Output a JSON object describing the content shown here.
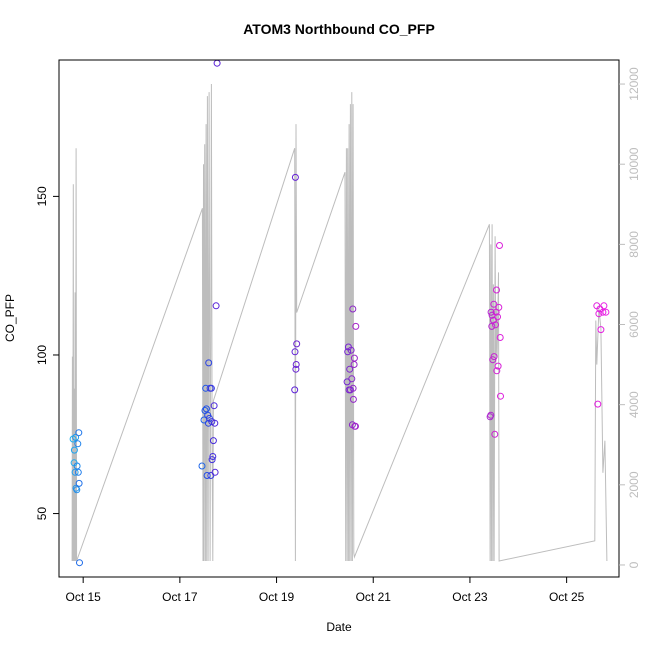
{
  "chart_data": {
    "type": "scatter",
    "title": "ATOM3 Northbound CO_PFP",
    "xlabel": "Date",
    "ylabel": "CO_PFP",
    "x_unit": "date",
    "x_range": [
      "2016-10-14T12:00",
      "2016-10-26T02:00"
    ],
    "y_range": [
      30,
      193
    ],
    "y2_range": [
      -300,
      12600
    ],
    "x_ticks": [
      {
        "label": "Oct 15",
        "x": "2016-10-15T00:00"
      },
      {
        "label": "Oct 17",
        "x": "2016-10-17T00:00"
      },
      {
        "label": "Oct 19",
        "x": "2016-10-19T00:00"
      },
      {
        "label": "Oct 21",
        "x": "2016-10-21T00:00"
      },
      {
        "label": "Oct 23",
        "x": "2016-10-23T00:00"
      },
      {
        "label": "Oct 25",
        "x": "2016-10-25T00:00"
      }
    ],
    "y_ticks": [
      "50",
      "100",
      "150"
    ],
    "y2_ticks": [
      "0",
      "2000",
      "4000",
      "6000",
      "8000",
      "10000",
      "12000"
    ],
    "grid": false,
    "point_color_gradient": [
      "#1fb0f0",
      "#1f4fe6",
      "#5a20d8",
      "#9028c8",
      "#d020d4",
      "#ea20e4"
    ],
    "line_color": "#bdbdbd",
    "series": [
      {
        "kind": "points",
        "points": [
          {
            "x": "2016-10-14T19:00",
            "y": 73.5
          },
          {
            "x": "2016-10-14T19:30",
            "y": 66
          },
          {
            "x": "2016-10-14T19:40",
            "y": 70
          },
          {
            "x": "2016-10-14T20:00",
            "y": 63
          },
          {
            "x": "2016-10-14T20:15",
            "y": 74
          },
          {
            "x": "2016-10-14T20:30",
            "y": 58
          },
          {
            "x": "2016-10-14T20:50",
            "y": 57.5
          },
          {
            "x": "2016-10-14T21:00",
            "y": 65
          },
          {
            "x": "2016-10-14T21:20",
            "y": 72
          },
          {
            "x": "2016-10-14T21:35",
            "y": 63
          },
          {
            "x": "2016-10-14T21:50",
            "y": 75.5
          },
          {
            "x": "2016-10-14T22:00",
            "y": 59.5
          },
          {
            "x": "2016-10-14T22:10",
            "y": 34.5
          },
          {
            "x": "2016-10-17T11:00",
            "y": 65
          },
          {
            "x": "2016-10-17T12:00",
            "y": 79.5
          },
          {
            "x": "2016-10-17T12:30",
            "y": 82.5
          },
          {
            "x": "2016-10-17T12:50",
            "y": 89.5
          },
          {
            "x": "2016-10-17T13:10",
            "y": 83
          },
          {
            "x": "2016-10-17T13:30",
            "y": 62
          },
          {
            "x": "2016-10-17T13:50",
            "y": 81
          },
          {
            "x": "2016-10-17T14:10",
            "y": 78.5
          },
          {
            "x": "2016-10-17T14:20",
            "y": 97.5
          },
          {
            "x": "2016-10-17T14:40",
            "y": 80
          },
          {
            "x": "2016-10-17T15:00",
            "y": 89.5
          },
          {
            "x": "2016-10-17T15:20",
            "y": 62
          },
          {
            "x": "2016-10-17T15:40",
            "y": 89.5
          },
          {
            "x": "2016-10-17T15:50",
            "y": 79
          },
          {
            "x": "2016-10-17T16:00",
            "y": 67
          },
          {
            "x": "2016-10-17T16:20",
            "y": 68
          },
          {
            "x": "2016-10-17T16:40",
            "y": 73
          },
          {
            "x": "2016-10-17T17:00",
            "y": 84
          },
          {
            "x": "2016-10-17T17:20",
            "y": 78.5
          },
          {
            "x": "2016-10-17T17:30",
            "y": 63
          },
          {
            "x": "2016-10-17T18:00",
            "y": 115.5
          },
          {
            "x": "2016-10-17T18:30",
            "y": 192
          },
          {
            "x": "2016-10-19T09:00",
            "y": 89
          },
          {
            "x": "2016-10-19T09:10",
            "y": 101
          },
          {
            "x": "2016-10-19T09:20",
            "y": 156
          },
          {
            "x": "2016-10-19T09:35",
            "y": 95.5
          },
          {
            "x": "2016-10-19T09:45",
            "y": 97
          },
          {
            "x": "2016-10-19T10:00",
            "y": 103.5
          },
          {
            "x": "2016-10-20T11:00",
            "y": 91.5
          },
          {
            "x": "2016-10-20T11:20",
            "y": 101
          },
          {
            "x": "2016-10-20T11:40",
            "y": 102.5
          },
          {
            "x": "2016-10-20T12:00",
            "y": 89
          },
          {
            "x": "2016-10-20T12:20",
            "y": 95.5
          },
          {
            "x": "2016-10-20T12:40",
            "y": 89
          },
          {
            "x": "2016-10-20T13:00",
            "y": 101.5
          },
          {
            "x": "2016-10-20T13:20",
            "y": 92.5
          },
          {
            "x": "2016-10-20T13:40",
            "y": 78
          },
          {
            "x": "2016-10-20T13:50",
            "y": 114.5
          },
          {
            "x": "2016-10-20T14:00",
            "y": 89.5
          },
          {
            "x": "2016-10-20T14:10",
            "y": 86
          },
          {
            "x": "2016-10-20T14:30",
            "y": 97
          },
          {
            "x": "2016-10-20T14:40",
            "y": 99
          },
          {
            "x": "2016-10-20T14:50",
            "y": 77.5
          },
          {
            "x": "2016-10-20T15:10",
            "y": 77.5
          },
          {
            "x": "2016-10-20T15:20",
            "y": 109
          },
          {
            "x": "2016-10-23T10:00",
            "y": 80.5
          },
          {
            "x": "2016-10-23T10:20",
            "y": 81
          },
          {
            "x": "2016-10-23T10:30",
            "y": 113.5
          },
          {
            "x": "2016-10-23T10:50",
            "y": 109
          },
          {
            "x": "2016-10-23T11:00",
            "y": 112.5
          },
          {
            "x": "2016-10-23T11:20",
            "y": 98.5
          },
          {
            "x": "2016-10-23T11:40",
            "y": 111
          },
          {
            "x": "2016-10-23T11:50",
            "y": 116
          },
          {
            "x": "2016-10-23T12:00",
            "y": 99.5
          },
          {
            "x": "2016-10-23T12:20",
            "y": 75
          },
          {
            "x": "2016-10-23T12:40",
            "y": 109.5
          },
          {
            "x": "2016-10-23T13:00",
            "y": 113.5
          },
          {
            "x": "2016-10-23T13:10",
            "y": 120.5
          },
          {
            "x": "2016-10-23T13:20",
            "y": 95
          },
          {
            "x": "2016-10-23T13:40",
            "y": 112
          },
          {
            "x": "2016-10-23T14:00",
            "y": 96.5
          },
          {
            "x": "2016-10-23T14:20",
            "y": 115
          },
          {
            "x": "2016-10-23T14:40",
            "y": 134.5
          },
          {
            "x": "2016-10-23T15:00",
            "y": 105.5
          },
          {
            "x": "2016-10-23T15:10",
            "y": 87
          },
          {
            "x": "2016-10-25T15:00",
            "y": 115.5
          },
          {
            "x": "2016-10-25T15:30",
            "y": 84.5
          },
          {
            "x": "2016-10-25T16:00",
            "y": 113
          },
          {
            "x": "2016-10-25T16:30",
            "y": 114.5
          },
          {
            "x": "2016-10-25T17:00",
            "y": 108
          },
          {
            "x": "2016-10-25T18:00",
            "y": 113.5
          },
          {
            "x": "2016-10-25T18:30",
            "y": 115.5
          },
          {
            "x": "2016-10-25T19:30",
            "y": 113.5
          }
        ]
      },
      {
        "kind": "line",
        "axis": "right",
        "points": [
          {
            "x": "2016-10-14T18:30",
            "y": 100
          },
          {
            "x": "2016-10-14T18:40",
            "y": 5200
          },
          {
            "x": "2016-10-14T18:50",
            "y": 100
          },
          {
            "x": "2016-10-14T19:05",
            "y": 9500
          },
          {
            "x": "2016-10-14T19:15",
            "y": 100
          },
          {
            "x": "2016-10-14T19:30",
            "y": 4400
          },
          {
            "x": "2016-10-14T19:45",
            "y": 100
          },
          {
            "x": "2016-10-14T20:00",
            "y": 6800
          },
          {
            "x": "2016-10-14T20:15",
            "y": 100
          },
          {
            "x": "2016-10-14T20:30",
            "y": 10400
          },
          {
            "x": "2016-10-14T20:45",
            "y": 100
          },
          {
            "x": "2016-10-17T11:10",
            "y": 8900
          },
          {
            "x": "2016-10-17T11:30",
            "y": 100
          },
          {
            "x": "2016-10-17T11:45",
            "y": 10000
          },
          {
            "x": "2016-10-17T12:00",
            "y": 100
          },
          {
            "x": "2016-10-17T12:20",
            "y": 10500
          },
          {
            "x": "2016-10-17T12:40",
            "y": 100
          },
          {
            "x": "2016-10-17T13:00",
            "y": 11000
          },
          {
            "x": "2016-10-17T13:20",
            "y": 100
          },
          {
            "x": "2016-10-17T13:40",
            "y": 11700
          },
          {
            "x": "2016-10-17T14:00",
            "y": 100
          },
          {
            "x": "2016-10-17T14:30",
            "y": 11800
          },
          {
            "x": "2016-10-17T15:00",
            "y": 100
          },
          {
            "x": "2016-10-17T15:40",
            "y": 12000
          },
          {
            "x": "2016-10-17T16:00",
            "y": 3000
          },
          {
            "x": "2016-10-17T16:20",
            "y": 100
          },
          {
            "x": "2016-10-17T16:40",
            "y": 4100
          },
          {
            "x": "2016-10-19T09:00",
            "y": 10400
          },
          {
            "x": "2016-10-19T09:20",
            "y": 100
          },
          {
            "x": "2016-10-19T09:40",
            "y": 11000
          },
          {
            "x": "2016-10-19T10:00",
            "y": 6300
          },
          {
            "x": "2016-10-20T10:00",
            "y": 9800
          },
          {
            "x": "2016-10-20T10:20",
            "y": 100
          },
          {
            "x": "2016-10-20T10:40",
            "y": 10400
          },
          {
            "x": "2016-10-20T11:00",
            "y": 100
          },
          {
            "x": "2016-10-20T11:20",
            "y": 10400
          },
          {
            "x": "2016-10-20T11:40",
            "y": 100
          },
          {
            "x": "2016-10-20T12:00",
            "y": 11000
          },
          {
            "x": "2016-10-20T12:20",
            "y": 100
          },
          {
            "x": "2016-10-20T12:40",
            "y": 11500
          },
          {
            "x": "2016-10-20T13:00",
            "y": 100
          },
          {
            "x": "2016-10-20T13:20",
            "y": 11800
          },
          {
            "x": "2016-10-20T13:40",
            "y": 100
          },
          {
            "x": "2016-10-20T14:00",
            "y": 11500
          },
          {
            "x": "2016-10-20T14:20",
            "y": 300
          },
          {
            "x": "2016-10-20T14:40",
            "y": 200
          },
          {
            "x": "2016-10-23T09:40",
            "y": 8500
          },
          {
            "x": "2016-10-23T10:00",
            "y": 100
          },
          {
            "x": "2016-10-23T10:20",
            "y": 8000
          },
          {
            "x": "2016-10-23T10:40",
            "y": 100
          },
          {
            "x": "2016-10-23T11:00",
            "y": 8500
          },
          {
            "x": "2016-10-23T11:20",
            "y": 100
          },
          {
            "x": "2016-10-23T11:40",
            "y": 7000
          },
          {
            "x": "2016-10-23T12:00",
            "y": 100
          },
          {
            "x": "2016-10-23T12:30",
            "y": 8200
          },
          {
            "x": "2016-10-23T12:50",
            "y": 5000
          },
          {
            "x": "2016-10-23T13:10",
            "y": 6500
          },
          {
            "x": "2016-10-23T13:30",
            "y": 5200
          },
          {
            "x": "2016-10-23T13:50",
            "y": 6200
          },
          {
            "x": "2016-10-23T14:10",
            "y": 7300
          },
          {
            "x": "2016-10-23T14:30",
            "y": 100
          },
          {
            "x": "2016-10-25T14:00",
            "y": 600
          },
          {
            "x": "2016-10-25T14:30",
            "y": 6100
          },
          {
            "x": "2016-10-25T15:00",
            "y": 5000
          },
          {
            "x": "2016-10-25T16:00",
            "y": 6400
          },
          {
            "x": "2016-10-25T17:00",
            "y": 5900
          },
          {
            "x": "2016-10-25T18:00",
            "y": 2300
          },
          {
            "x": "2016-10-25T19:00",
            "y": 3100
          },
          {
            "x": "2016-10-25T20:00",
            "y": 100
          }
        ]
      }
    ]
  }
}
